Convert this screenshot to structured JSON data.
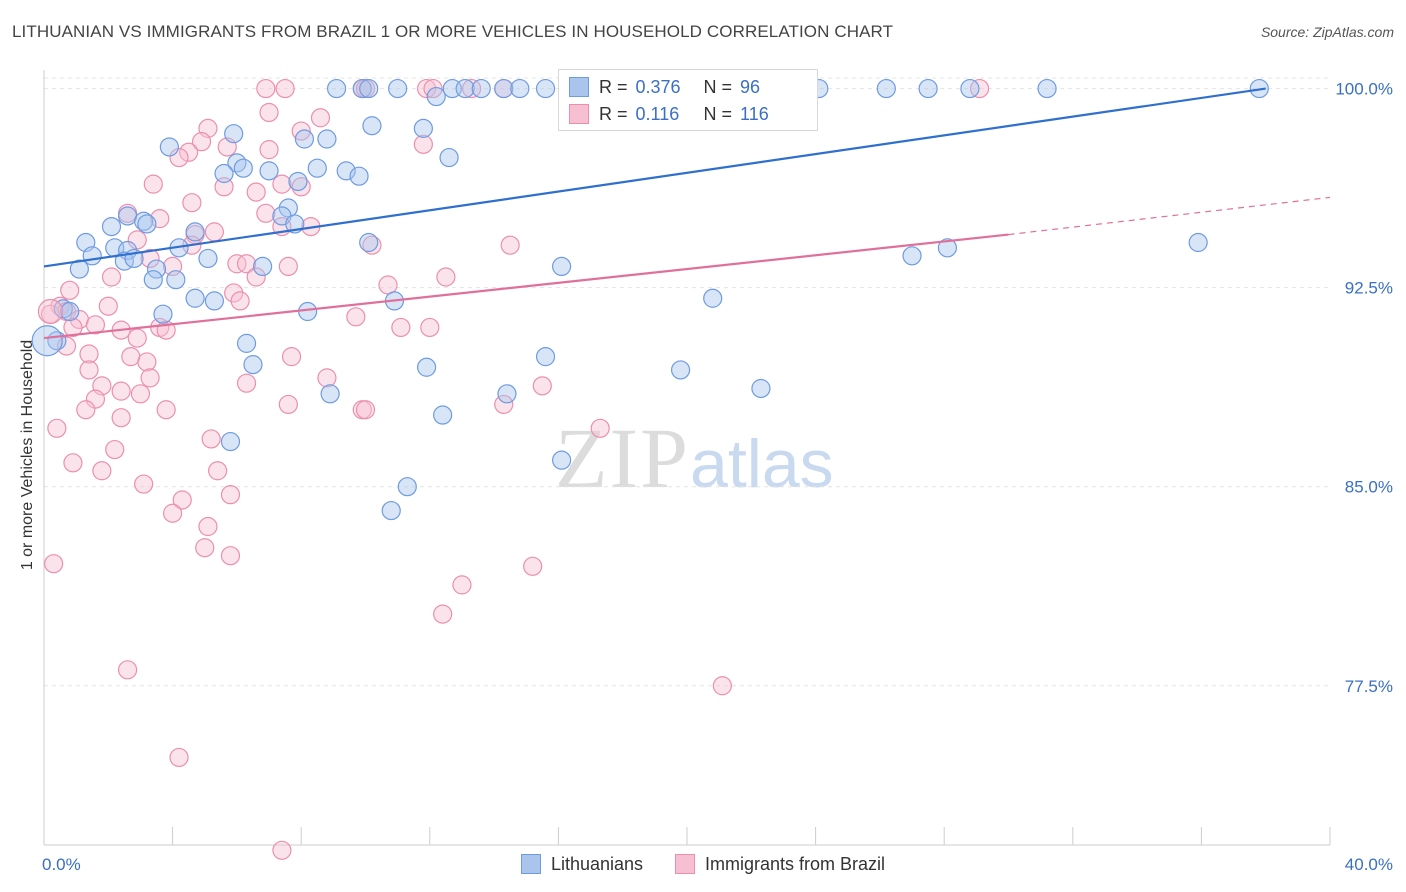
{
  "header": {
    "title": "LITHUANIAN VS IMMIGRANTS FROM BRAZIL 1 OR MORE VEHICLES IN HOUSEHOLD CORRELATION CHART",
    "source": "Source: ZipAtlas.com"
  },
  "watermark": {
    "zip": "ZIP",
    "atlas": "atlas"
  },
  "legend": {
    "r_label": "R =",
    "n_label": "N =",
    "rows": [
      {
        "r": "0.376",
        "n": "96"
      },
      {
        "r": "0.116",
        "n": "116"
      }
    ]
  },
  "colors": {
    "blue_fill": "#a9c5ee",
    "blue_stroke": "#6f9be0",
    "blue_line": "#2f6fce",
    "pink_fill": "#f7c0d2",
    "pink_stroke": "#ec8fae",
    "pink_line": "#e0709a",
    "tick_label": "#3a6fc4",
    "grid": "#e4e4e4"
  },
  "chart_data": {
    "type": "scatter",
    "title": "LITHUANIAN VS IMMIGRANTS FROM BRAZIL 1 OR MORE VEHICLES IN HOUSEHOLD CORRELATION CHART",
    "xlabel": "",
    "ylabel": "1 or more Vehicles in Household",
    "xlim": [
      0,
      40
    ],
    "ylim": [
      71.5,
      100.7
    ],
    "x_tick_labels": [
      "0.0%",
      "40.0%"
    ],
    "y_ticks": [
      77.5,
      85.0,
      92.5,
      100.0
    ],
    "y_tick_labels": [
      "77.5%",
      "85.0%",
      "92.5%",
      "100.0%"
    ],
    "grid": true,
    "legend_position": "bottom",
    "series": [
      {
        "name": "Lithuanians",
        "r": 0.376,
        "n": 96,
        "trend": {
          "x": [
            0.0,
            38.0
          ],
          "y": [
            93.3,
            100.0
          ]
        },
        "points": [
          [
            9.1,
            100
          ],
          [
            9.9,
            100
          ],
          [
            10.1,
            100
          ],
          [
            11.0,
            100
          ],
          [
            12.7,
            100
          ],
          [
            13.1,
            100
          ],
          [
            13.6,
            100
          ],
          [
            14.3,
            100
          ],
          [
            14.8,
            100
          ],
          [
            15.6,
            100
          ],
          [
            17.1,
            100
          ],
          [
            19.5,
            100
          ],
          [
            21.5,
            100
          ],
          [
            22.8,
            100
          ],
          [
            24.1,
            100
          ],
          [
            26.2,
            100
          ],
          [
            27.5,
            100
          ],
          [
            28.8,
            100
          ],
          [
            31.2,
            100
          ],
          [
            37.8,
            100
          ],
          [
            12.2,
            99.7
          ],
          [
            10.2,
            98.6
          ],
          [
            11.8,
            98.5
          ],
          [
            5.9,
            98.3
          ],
          [
            8.1,
            98.1
          ],
          [
            8.8,
            98.1
          ],
          [
            3.9,
            97.8
          ],
          [
            12.6,
            97.4
          ],
          [
            6.0,
            97.2
          ],
          [
            8.5,
            97.0
          ],
          [
            6.2,
            97.0
          ],
          [
            7.0,
            96.9
          ],
          [
            9.4,
            96.9
          ],
          [
            5.6,
            96.8
          ],
          [
            9.8,
            96.7
          ],
          [
            7.9,
            96.5
          ],
          [
            7.6,
            95.5
          ],
          [
            7.4,
            95.2
          ],
          [
            2.6,
            95.2
          ],
          [
            3.1,
            95.0
          ],
          [
            7.8,
            94.9
          ],
          [
            2.1,
            94.8
          ],
          [
            3.2,
            94.9
          ],
          [
            4.7,
            94.6
          ],
          [
            1.3,
            94.2
          ],
          [
            2.2,
            94.0
          ],
          [
            2.6,
            93.9
          ],
          [
            4.2,
            94.0
          ],
          [
            10.1,
            94.2
          ],
          [
            28.1,
            94.0
          ],
          [
            35.9,
            94.2
          ],
          [
            1.5,
            93.7
          ],
          [
            5.1,
            93.6
          ],
          [
            2.5,
            93.5
          ],
          [
            2.8,
            93.6
          ],
          [
            6.8,
            93.3
          ],
          [
            3.5,
            93.2
          ],
          [
            16.1,
            93.3
          ],
          [
            27.0,
            93.7
          ],
          [
            1.1,
            93.2
          ],
          [
            3.4,
            92.8
          ],
          [
            4.1,
            92.8
          ],
          [
            4.7,
            92.1
          ],
          [
            5.3,
            92.0
          ],
          [
            10.9,
            92.0
          ],
          [
            20.8,
            92.1
          ],
          [
            0.6,
            91.7
          ],
          [
            0.8,
            91.6
          ],
          [
            3.7,
            91.5
          ],
          [
            8.2,
            91.6
          ],
          [
            0.4,
            90.5
          ],
          [
            6.3,
            90.4
          ],
          [
            15.6,
            89.9
          ],
          [
            6.5,
            89.6
          ],
          [
            11.9,
            89.5
          ],
          [
            19.8,
            89.4
          ],
          [
            8.9,
            88.5
          ],
          [
            14.4,
            88.5
          ],
          [
            22.3,
            88.7
          ],
          [
            12.4,
            87.7
          ],
          [
            5.8,
            86.7
          ],
          [
            16.1,
            86.0
          ],
          [
            11.3,
            85.0
          ],
          [
            10.8,
            84.1
          ]
        ]
      },
      {
        "name": "Immigrants from Brazil",
        "r": 0.116,
        "n": 116,
        "trend": {
          "x": [
            0.0,
            30.0
          ],
          "y": [
            90.6,
            94.5
          ]
        },
        "trend_extension": {
          "x": [
            30.0,
            40.0
          ],
          "y": [
            94.5,
            95.9
          ]
        },
        "points": [
          [
            6.9,
            100
          ],
          [
            7.5,
            100
          ],
          [
            9.9,
            100
          ],
          [
            10.0,
            100
          ],
          [
            11.9,
            100
          ],
          [
            12.1,
            100
          ],
          [
            13.3,
            100
          ],
          [
            14.3,
            100
          ],
          [
            17.1,
            100
          ],
          [
            23.4,
            100
          ],
          [
            29.1,
            100
          ],
          [
            5.1,
            98.5
          ],
          [
            7.0,
            99.1
          ],
          [
            8.0,
            98.4
          ],
          [
            8.6,
            98.9
          ],
          [
            4.9,
            98.0
          ],
          [
            5.7,
            97.8
          ],
          [
            7.0,
            97.7
          ],
          [
            11.8,
            97.9
          ],
          [
            4.5,
            97.6
          ],
          [
            4.2,
            97.4
          ],
          [
            3.4,
            96.4
          ],
          [
            6.6,
            96.1
          ],
          [
            7.4,
            96.4
          ],
          [
            8.0,
            96.3
          ],
          [
            5.6,
            96.3
          ],
          [
            4.6,
            95.7
          ],
          [
            6.9,
            95.3
          ],
          [
            2.6,
            95.3
          ],
          [
            7.4,
            94.8
          ],
          [
            8.3,
            94.8
          ],
          [
            3.6,
            95.1
          ],
          [
            5.3,
            94.6
          ],
          [
            4.7,
            94.5
          ],
          [
            2.9,
            94.3
          ],
          [
            4.6,
            94.1
          ],
          [
            10.2,
            94.1
          ],
          [
            14.5,
            94.1
          ],
          [
            3.3,
            93.6
          ],
          [
            6.0,
            93.4
          ],
          [
            6.3,
            93.4
          ],
          [
            4.0,
            93.3
          ],
          [
            7.6,
            93.3
          ],
          [
            2.1,
            92.9
          ],
          [
            6.6,
            92.9
          ],
          [
            12.5,
            92.9
          ],
          [
            10.7,
            92.6
          ],
          [
            0.8,
            92.4
          ],
          [
            5.9,
            92.3
          ],
          [
            2.0,
            91.8
          ],
          [
            6.1,
            92.0
          ],
          [
            0.5,
            91.8
          ],
          [
            0.7,
            91.6
          ],
          [
            9.7,
            91.4
          ],
          [
            0.2,
            91.5
          ],
          [
            1.1,
            91.3
          ],
          [
            1.6,
            91.1
          ],
          [
            3.6,
            91.0
          ],
          [
            2.4,
            90.9
          ],
          [
            0.9,
            91.0
          ],
          [
            11.1,
            91.0
          ],
          [
            12.0,
            91.0
          ],
          [
            3.8,
            90.9
          ],
          [
            2.9,
            90.6
          ],
          [
            0.7,
            90.3
          ],
          [
            1.4,
            90.0
          ],
          [
            2.7,
            89.9
          ],
          [
            7.7,
            89.9
          ],
          [
            3.2,
            89.7
          ],
          [
            1.4,
            89.4
          ],
          [
            3.3,
            89.1
          ],
          [
            8.8,
            89.1
          ],
          [
            6.3,
            88.9
          ],
          [
            1.8,
            88.8
          ],
          [
            15.5,
            88.8
          ],
          [
            2.4,
            88.6
          ],
          [
            3.0,
            88.5
          ],
          [
            1.6,
            88.3
          ],
          [
            7.6,
            88.1
          ],
          [
            14.3,
            88.1
          ],
          [
            1.3,
            87.9
          ],
          [
            9.9,
            87.9
          ],
          [
            10.0,
            87.9
          ],
          [
            3.8,
            87.9
          ],
          [
            2.4,
            87.6
          ],
          [
            0.4,
            87.2
          ],
          [
            17.3,
            87.2
          ],
          [
            5.2,
            86.8
          ],
          [
            2.2,
            86.4
          ],
          [
            0.9,
            85.9
          ],
          [
            5.4,
            85.6
          ],
          [
            1.8,
            85.6
          ],
          [
            3.1,
            85.1
          ],
          [
            5.8,
            84.7
          ],
          [
            4.3,
            84.5
          ],
          [
            4.0,
            84.0
          ],
          [
            5.1,
            83.5
          ],
          [
            5.0,
            82.7
          ],
          [
            5.8,
            82.4
          ],
          [
            15.2,
            82.0
          ],
          [
            0.3,
            82.1
          ],
          [
            13.0,
            81.3
          ],
          [
            12.4,
            80.2
          ],
          [
            2.6,
            78.1
          ],
          [
            21.1,
            77.5
          ],
          [
            4.2,
            74.8
          ],
          [
            7.4,
            71.3
          ]
        ]
      }
    ]
  }
}
